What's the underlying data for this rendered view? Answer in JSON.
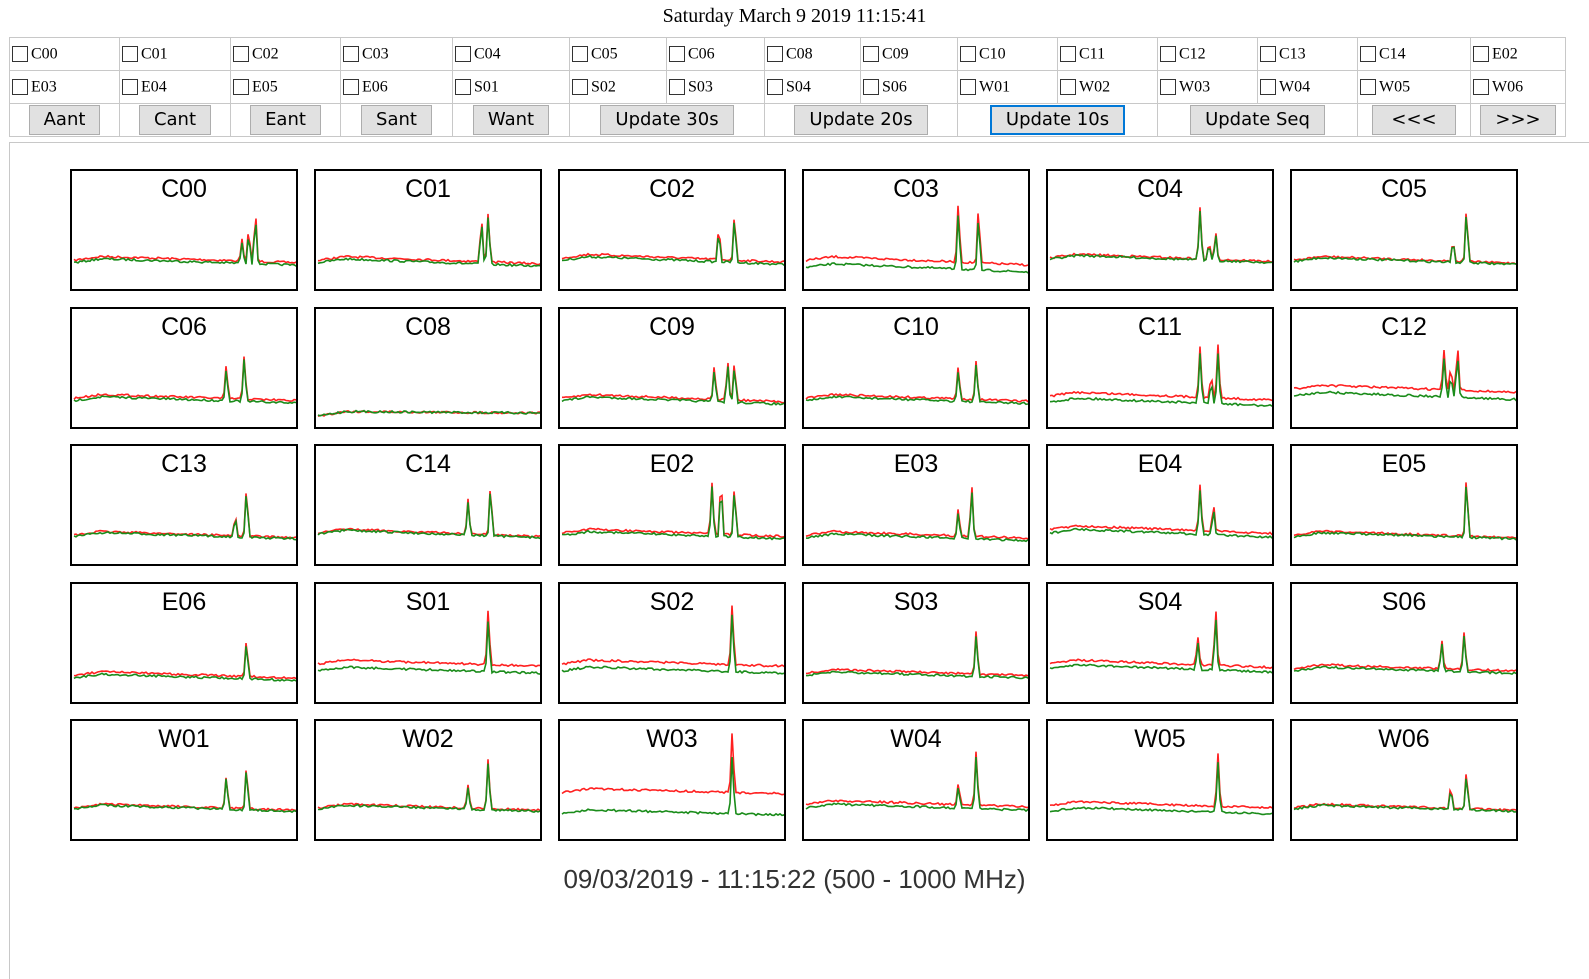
{
  "page_title": "Saturday March 9 2019 11:15:41",
  "checkbox_row1": [
    "C00",
    "C01",
    "C02",
    "C03",
    "C04",
    "C05",
    "C06",
    "C08",
    "C09",
    "C10",
    "C11",
    "C12",
    "C13",
    "C14",
    "E02"
  ],
  "checkbox_row2": [
    "E03",
    "E04",
    "E05",
    "E06",
    "S01",
    "S02",
    "S03",
    "S04",
    "S06",
    "W01",
    "W02",
    "W03",
    "W04",
    "W05",
    "W06"
  ],
  "buttons": [
    {
      "label": "Aant",
      "id": "aant"
    },
    {
      "label": "Cant",
      "id": "cant"
    },
    {
      "label": "Eant",
      "id": "eant"
    },
    {
      "label": "Sant",
      "id": "sant"
    },
    {
      "label": "Want",
      "id": "want"
    },
    {
      "label": "Update 30s",
      "id": "update-30s"
    },
    {
      "label": "Update 20s",
      "id": "update-20s"
    },
    {
      "label": "Update 10s",
      "id": "update-10s",
      "focused": true
    },
    {
      "label": "Update Seq",
      "id": "update-seq"
    },
    {
      "label": "<<<",
      "id": "prev"
    },
    {
      "label": ">>>",
      "id": "next"
    }
  ],
  "series_colors": {
    "red": "#ff2020",
    "green": "#1a8c1a"
  },
  "plots": [
    {
      "label": "C00",
      "base": 0.7,
      "tilt": 0.12,
      "gap": 0.02,
      "peaks": [
        [
          0.78,
          0.3
        ],
        [
          0.81,
          0.45
        ],
        [
          0.75,
          0.18
        ]
      ]
    },
    {
      "label": "C01",
      "base": 0.7,
      "tilt": 0.14,
      "gap": 0.02,
      "peaks": [
        [
          0.73,
          0.4
        ],
        [
          0.76,
          0.45
        ]
      ]
    },
    {
      "label": "C02",
      "base": 0.68,
      "tilt": 0.15,
      "gap": 0.02,
      "peaks": [
        [
          0.7,
          0.3
        ],
        [
          0.77,
          0.42
        ]
      ]
    },
    {
      "label": "C03",
      "base": 0.7,
      "tilt": 0.16,
      "gap": 0.06,
      "peaks": [
        [
          0.68,
          0.55
        ],
        [
          0.77,
          0.5
        ]
      ]
    },
    {
      "label": "C04",
      "base": 0.68,
      "tilt": 0.14,
      "gap": 0.01,
      "peaks": [
        [
          0.67,
          0.45
        ],
        [
          0.74,
          0.25
        ],
        [
          0.71,
          0.15
        ]
      ]
    },
    {
      "label": "C05",
      "base": 0.7,
      "tilt": 0.13,
      "gap": 0.01,
      "peaks": [
        [
          0.71,
          0.2
        ],
        [
          0.77,
          0.5
        ]
      ]
    },
    {
      "label": "C06",
      "base": 0.7,
      "tilt": 0.12,
      "gap": 0.02,
      "peaks": [
        [
          0.68,
          0.3
        ],
        [
          0.76,
          0.4
        ]
      ]
    },
    {
      "label": "C08",
      "base": 0.85,
      "tilt": 0.03,
      "gap": 0.0,
      "peaks": []
    },
    {
      "label": "C09",
      "base": 0.7,
      "tilt": 0.14,
      "gap": 0.02,
      "peaks": [
        [
          0.68,
          0.3
        ],
        [
          0.74,
          0.35
        ],
        [
          0.77,
          0.35
        ]
      ]
    },
    {
      "label": "C10",
      "base": 0.7,
      "tilt": 0.13,
      "gap": 0.02,
      "peaks": [
        [
          0.68,
          0.3
        ],
        [
          0.76,
          0.35
        ]
      ]
    },
    {
      "label": "C11",
      "base": 0.68,
      "tilt": 0.15,
      "gap": 0.05,
      "peaks": [
        [
          0.67,
          0.45
        ],
        [
          0.75,
          0.45
        ],
        [
          0.72,
          0.2
        ]
      ]
    },
    {
      "label": "C12",
      "base": 0.62,
      "tilt": 0.14,
      "gap": 0.06,
      "peaks": [
        [
          0.67,
          0.35
        ],
        [
          0.73,
          0.4
        ],
        [
          0.7,
          0.2
        ]
      ]
    },
    {
      "label": "C13",
      "base": 0.7,
      "tilt": 0.12,
      "gap": 0.01,
      "peaks": [
        [
          0.72,
          0.2
        ],
        [
          0.77,
          0.45
        ]
      ]
    },
    {
      "label": "C14",
      "base": 0.68,
      "tilt": 0.14,
      "gap": 0.01,
      "peaks": [
        [
          0.67,
          0.3
        ],
        [
          0.77,
          0.45
        ]
      ]
    },
    {
      "label": "E02",
      "base": 0.68,
      "tilt": 0.14,
      "gap": 0.02,
      "peaks": [
        [
          0.67,
          0.45
        ],
        [
          0.71,
          0.5
        ],
        [
          0.77,
          0.45
        ]
      ]
    },
    {
      "label": "E03",
      "base": 0.7,
      "tilt": 0.13,
      "gap": 0.02,
      "peaks": [
        [
          0.68,
          0.25
        ],
        [
          0.74,
          0.45
        ]
      ]
    },
    {
      "label": "E04",
      "base": 0.65,
      "tilt": 0.15,
      "gap": 0.03,
      "peaks": [
        [
          0.67,
          0.4
        ],
        [
          0.73,
          0.25
        ]
      ]
    },
    {
      "label": "E05",
      "base": 0.7,
      "tilt": 0.12,
      "gap": 0.01,
      "peaks": [
        [
          0.77,
          0.55
        ]
      ]
    },
    {
      "label": "E06",
      "base": 0.72,
      "tilt": 0.12,
      "gap": 0.02,
      "peaks": [
        [
          0.77,
          0.35
        ]
      ]
    },
    {
      "label": "S01",
      "base": 0.62,
      "tilt": 0.12,
      "gap": 0.06,
      "peaks": [
        [
          0.76,
          0.5
        ]
      ]
    },
    {
      "label": "S02",
      "base": 0.62,
      "tilt": 0.12,
      "gap": 0.06,
      "peaks": [
        [
          0.76,
          0.55
        ]
      ]
    },
    {
      "label": "S03",
      "base": 0.7,
      "tilt": 0.12,
      "gap": 0.02,
      "peaks": [
        [
          0.76,
          0.4
        ]
      ]
    },
    {
      "label": "S04",
      "base": 0.62,
      "tilt": 0.14,
      "gap": 0.04,
      "peaks": [
        [
          0.66,
          0.25
        ],
        [
          0.74,
          0.5
        ]
      ]
    },
    {
      "label": "S06",
      "base": 0.66,
      "tilt": 0.12,
      "gap": 0.02,
      "peaks": [
        [
          0.66,
          0.25
        ],
        [
          0.76,
          0.35
        ]
      ]
    },
    {
      "label": "W01",
      "base": 0.68,
      "tilt": 0.12,
      "gap": 0.01,
      "peaks": [
        [
          0.68,
          0.3
        ],
        [
          0.77,
          0.4
        ]
      ]
    },
    {
      "label": "W02",
      "base": 0.68,
      "tilt": 0.12,
      "gap": 0.01,
      "peaks": [
        [
          0.67,
          0.2
        ],
        [
          0.76,
          0.45
        ]
      ]
    },
    {
      "label": "W03",
      "base": 0.55,
      "tilt": 0.1,
      "gap": 0.18,
      "peaks": [
        [
          0.76,
          0.55
        ]
      ]
    },
    {
      "label": "W04",
      "base": 0.65,
      "tilt": 0.12,
      "gap": 0.03,
      "peaks": [
        [
          0.68,
          0.2
        ],
        [
          0.76,
          0.5
        ]
      ]
    },
    {
      "label": "W05",
      "base": 0.66,
      "tilt": 0.12,
      "gap": 0.05,
      "peaks": [
        [
          0.75,
          0.45
        ]
      ]
    },
    {
      "label": "W06",
      "base": 0.68,
      "tilt": 0.12,
      "gap": 0.01,
      "peaks": [
        [
          0.7,
          0.2
        ],
        [
          0.77,
          0.35
        ]
      ]
    }
  ],
  "footer": "09/03/2019 - 11:15:22 (500 - 1000 MHz)"
}
